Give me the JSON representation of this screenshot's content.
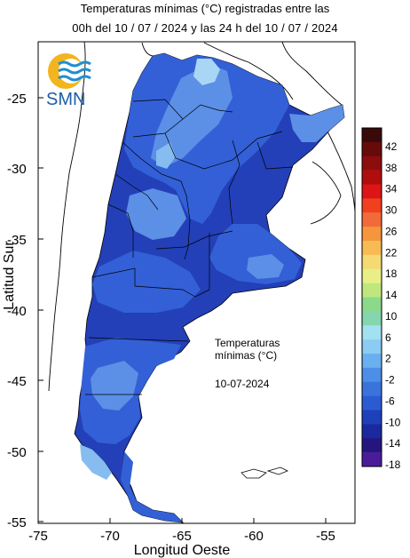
{
  "title_line1": "Temperaturas mínimas (°C) registradas entre las",
  "title_line2": "00h del 10 / 07 / 2024 y las 24 h del 10 / 07 / 2024",
  "logo_text": "SMN",
  "x_axis": {
    "label": "Longitud Oeste",
    "ticks": [
      "-75",
      "-70",
      "-65",
      "-60",
      "-55"
    ],
    "range": [
      -75,
      -53
    ]
  },
  "y_axis": {
    "label": "Latitud Sur",
    "ticks": [
      "-25",
      "-30",
      "-35",
      "-40",
      "-45",
      "-50",
      "-55"
    ],
    "range": [
      -55,
      -21.5
    ]
  },
  "annotation": {
    "line1": "Temperaturas",
    "line2": "mínimas (°C)",
    "date": "10-07-2024"
  },
  "legend": {
    "labels": [
      "42",
      "38",
      "34",
      "30",
      "26",
      "22",
      "18",
      "14",
      "10",
      "6",
      "2",
      "-2",
      "-6",
      "-10",
      "-14",
      "-18"
    ],
    "colors": [
      "#3a0a0a",
      "#660a0a",
      "#8c0d0d",
      "#b00d0d",
      "#dd1515",
      "#f04020",
      "#f36a3a",
      "#f5953c",
      "#f7bb55",
      "#f3da73",
      "#e9ef86",
      "#bfe77e",
      "#8cd98b",
      "#83d6ae",
      "#a3e0f0",
      "#8ccbf2",
      "#6ab0f0",
      "#4d8ee7",
      "#3b73dd",
      "#2b5bd3",
      "#1e40bb",
      "#1a2a9e",
      "#26157f",
      "#4b1c9a"
    ]
  },
  "map_colors": {
    "deep": "#2340b8",
    "mid": "#3360d6",
    "light": "#5c8fe6",
    "lighter": "#86bcf0",
    "lightest": "#a9d6f5",
    "border": "#000000"
  }
}
